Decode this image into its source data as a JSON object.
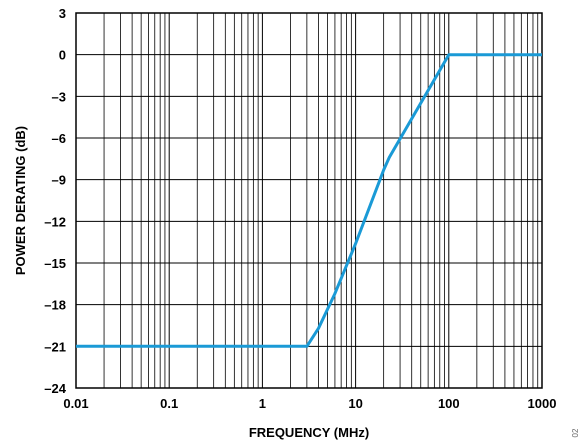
{
  "chart_data": {
    "type": "line",
    "xlabel": "FREQUENCY (MHz)",
    "ylabel": "POWER DERATING (dB)",
    "x_scale": "log",
    "xlim": [
      0.01,
      1000
    ],
    "ylim": [
      -24,
      3
    ],
    "x_ticks": [
      0.01,
      0.1,
      1,
      10,
      100,
      1000
    ],
    "x_tick_labels": [
      "0.01",
      "0.1",
      "1",
      "10",
      "100",
      "1000"
    ],
    "y_ticks": [
      3,
      0,
      -3,
      -6,
      -9,
      -12,
      -15,
      -18,
      -21,
      -24
    ],
    "y_tick_labels": [
      "3",
      "0",
      "–3",
      "–6",
      "–9",
      "–12",
      "–15",
      "–18",
      "–21",
      "–24"
    ],
    "grid": true,
    "line_color": "#1a9ad6",
    "series": [
      {
        "x": [
          0.01,
          3,
          4,
          6,
          10,
          20,
          23,
          100,
          1000
        ],
        "y": [
          -21,
          -21,
          -19.7,
          -17.2,
          -13.6,
          -8.3,
          -7.4,
          0,
          0
        ]
      }
    ]
  },
  "side_code": "02"
}
